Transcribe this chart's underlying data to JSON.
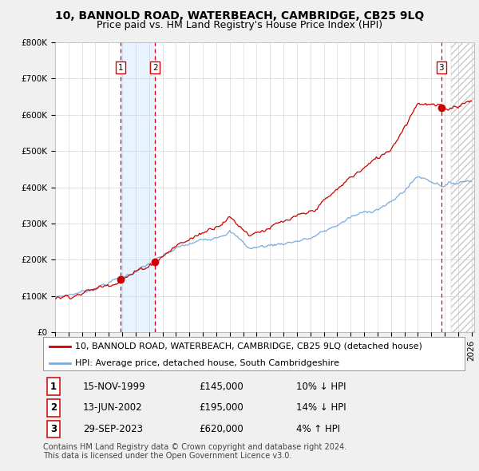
{
  "title": "10, BANNOLD ROAD, WATERBEACH, CAMBRIDGE, CB25 9LQ",
  "subtitle": "Price paid vs. HM Land Registry's House Price Index (HPI)",
  "ylabel_ticks": [
    "£0",
    "£100K",
    "£200K",
    "£300K",
    "£400K",
    "£500K",
    "£600K",
    "£700K",
    "£800K"
  ],
  "ytick_values": [
    0,
    100000,
    200000,
    300000,
    400000,
    500000,
    600000,
    700000,
    800000
  ],
  "ylim": [
    0,
    800000
  ],
  "xlim_start": 1995.3,
  "xlim_end": 2026.2,
  "xticks": [
    1995,
    1996,
    1997,
    1998,
    1999,
    2000,
    2001,
    2002,
    2003,
    2004,
    2005,
    2006,
    2007,
    2008,
    2009,
    2010,
    2011,
    2012,
    2013,
    2014,
    2015,
    2016,
    2017,
    2018,
    2019,
    2020,
    2021,
    2022,
    2023,
    2024,
    2025,
    2026
  ],
  "sale_dates": [
    1999.88,
    2002.45,
    2023.75
  ],
  "sale_prices": [
    145000,
    195000,
    620000
  ],
  "sale_labels": [
    "1",
    "2",
    "3"
  ],
  "red_line_color": "#cc0000",
  "blue_line_color": "#7aabdc",
  "shade_color": "#ddeeff",
  "hatch_color": "#cccccc",
  "vline_color": "#dd0000",
  "background_color": "#f0f0f0",
  "plot_bg_color": "#ffffff",
  "legend_line1": "10, BANNOLD ROAD, WATERBEACH, CAMBRIDGE, CB25 9LQ (detached house)",
  "legend_line2": "HPI: Average price, detached house, South Cambridgeshire",
  "table_entries": [
    {
      "label": "1",
      "date": "15-NOV-1999",
      "price": "£145,000",
      "change": "10% ↓ HPI"
    },
    {
      "label": "2",
      "date": "13-JUN-2002",
      "price": "£195,000",
      "change": "14% ↓ HPI"
    },
    {
      "label": "3",
      "date": "29-SEP-2023",
      "price": "£620,000",
      "change": "4% ↑ HPI"
    }
  ],
  "footnote": "Contains HM Land Registry data © Crown copyright and database right 2024.\nThis data is licensed under the Open Government Licence v3.0.",
  "title_fontsize": 10,
  "subtitle_fontsize": 9,
  "tick_fontsize": 7.5,
  "legend_fontsize": 8,
  "table_fontsize": 8.5
}
